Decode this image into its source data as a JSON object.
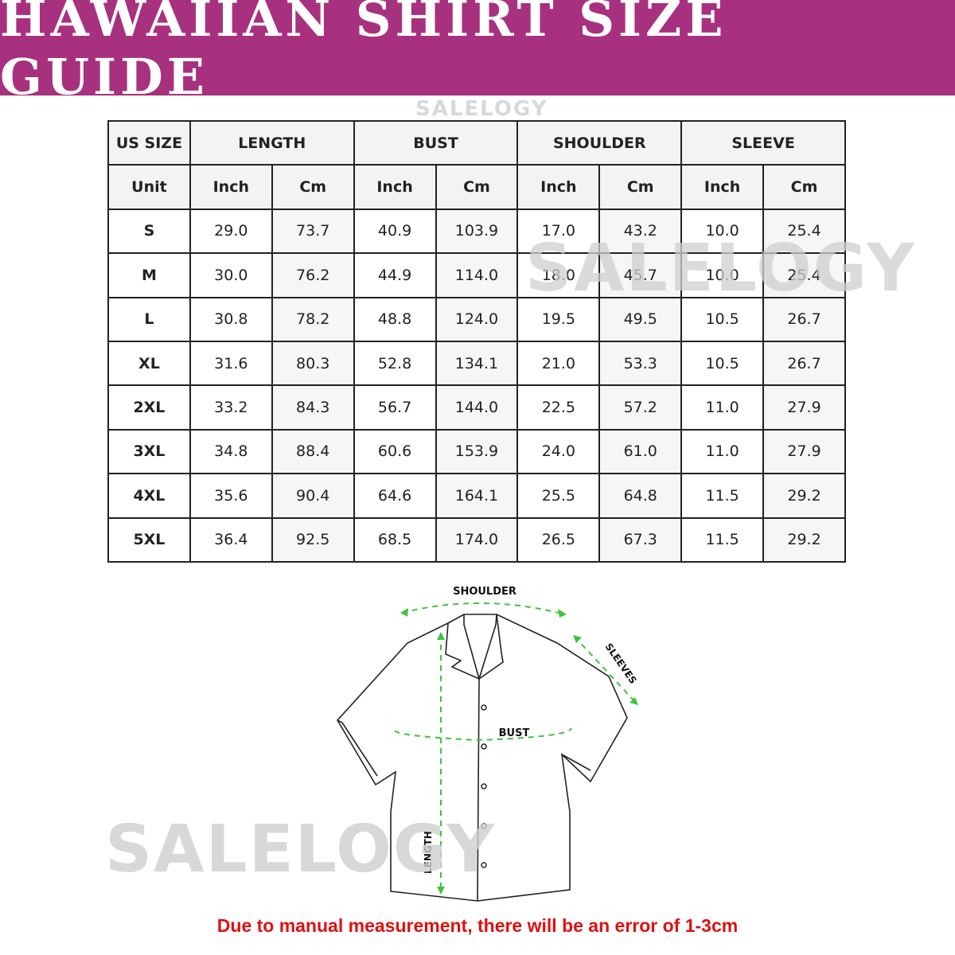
{
  "title": "HAWAIIAN SHIRT SIZE GUIDE",
  "watermark": "SALELOGY",
  "table": {
    "group_headers": [
      "US SIZE",
      "LENGTH",
      "BUST",
      "SHOULDER",
      "SLEEVE"
    ],
    "unit_row": [
      "Unit",
      "Inch",
      "Cm",
      "Inch",
      "Cm",
      "Inch",
      "Cm",
      "Inch",
      "Cm"
    ],
    "rows": [
      [
        "S",
        "29.0",
        "73.7",
        "40.9",
        "103.9",
        "17.0",
        "43.2",
        "10.0",
        "25.4"
      ],
      [
        "M",
        "30.0",
        "76.2",
        "44.9",
        "114.0",
        "18.0",
        "45.7",
        "10.0",
        "25.4"
      ],
      [
        "L",
        "30.8",
        "78.2",
        "48.8",
        "124.0",
        "19.5",
        "49.5",
        "10.5",
        "26.7"
      ],
      [
        "XL",
        "31.6",
        "80.3",
        "52.8",
        "134.1",
        "21.0",
        "53.3",
        "10.5",
        "26.7"
      ],
      [
        "2XL",
        "33.2",
        "84.3",
        "56.7",
        "144.0",
        "22.5",
        "57.2",
        "11.0",
        "27.9"
      ],
      [
        "3XL",
        "34.8",
        "88.4",
        "60.6",
        "153.9",
        "24.0",
        "61.0",
        "11.0",
        "27.9"
      ],
      [
        "4XL",
        "35.6",
        "90.4",
        "64.6",
        "164.1",
        "25.5",
        "64.8",
        "11.5",
        "29.2"
      ],
      [
        "5XL",
        "36.4",
        "92.5",
        "68.5",
        "174.0",
        "26.5",
        "67.3",
        "11.5",
        "29.2"
      ]
    ]
  },
  "diagram": {
    "shoulder": "SHOULDER",
    "sleeves": "SLEEVES",
    "bust": "BUST",
    "length": "LENGTH"
  },
  "note": "Due to manual measurement, there will be an error of 1-3cm",
  "colors": {
    "banner": "#a8317f",
    "arrow": "#3cc43c",
    "note": "#e01010"
  }
}
